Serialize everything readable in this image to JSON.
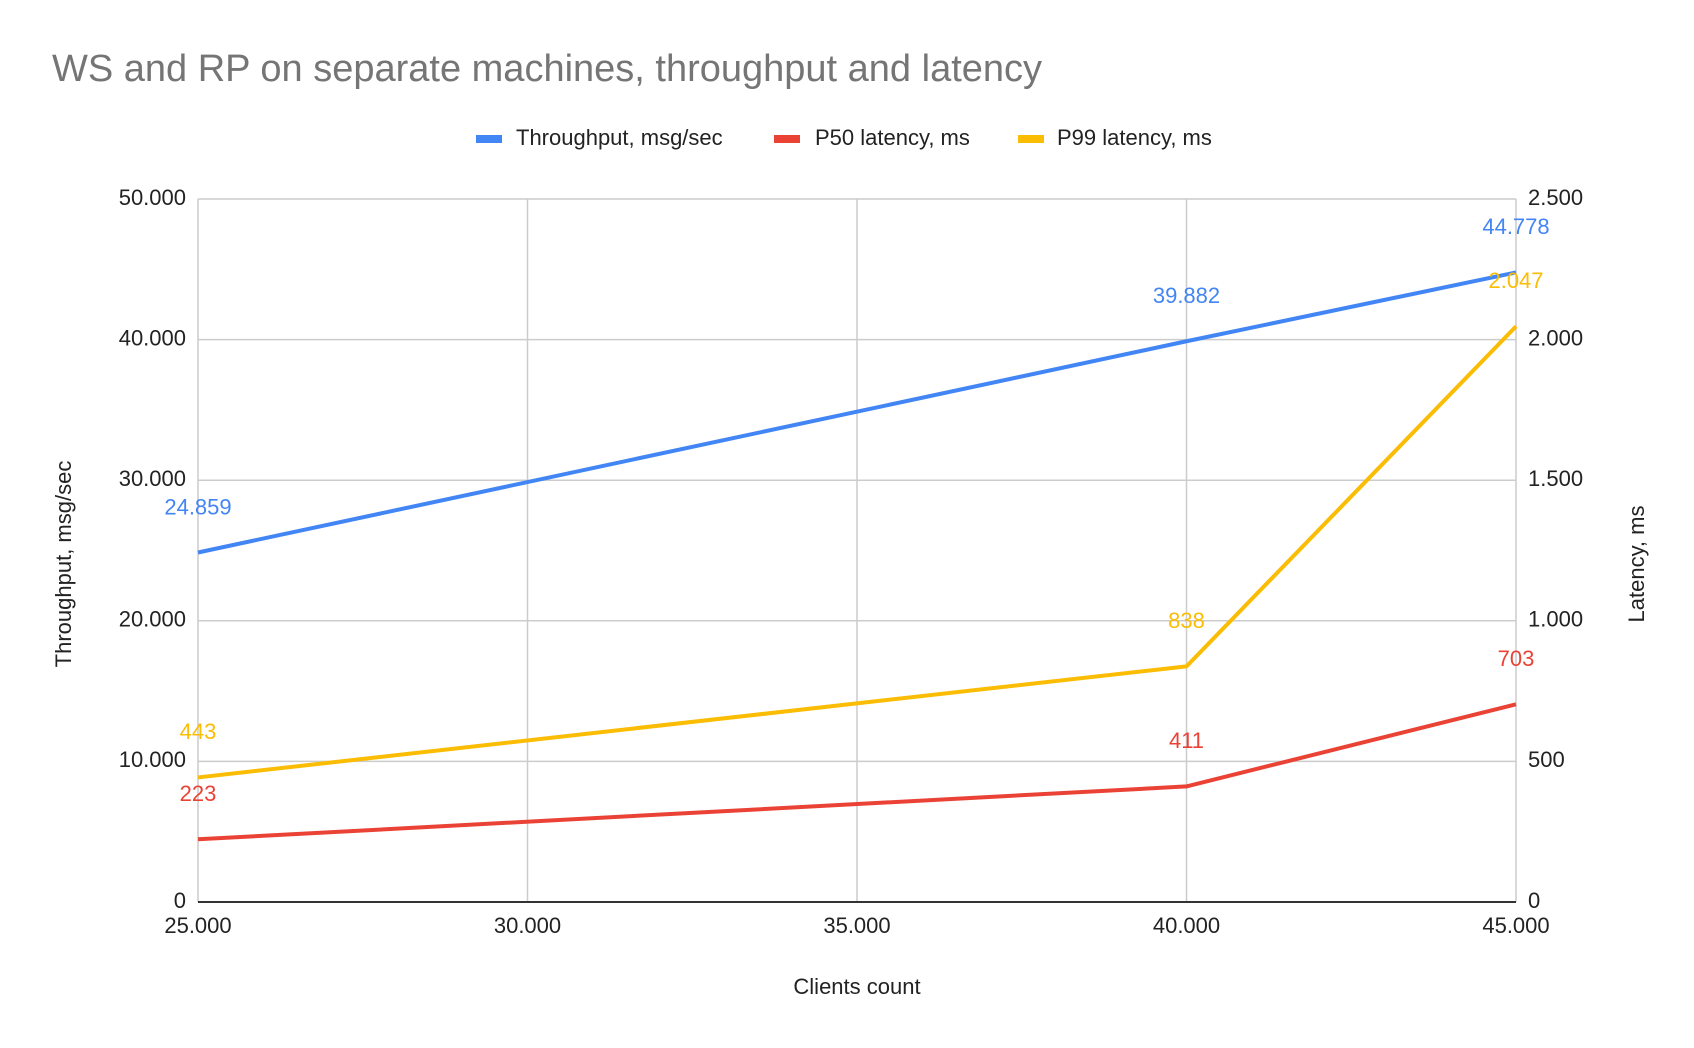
{
  "chart_data": {
    "type": "line",
    "title": "WS and RP on separate machines, throughput and latency",
    "xlabel": "Clients count",
    "ylabel": "Throughput, msg/sec",
    "y2label": "Latency, ms",
    "x": [
      25000,
      40000,
      45000
    ],
    "xlim": [
      25000,
      45000
    ],
    "xticks": [
      {
        "value": 25000,
        "label": "25.000"
      },
      {
        "value": 30000,
        "label": "30.000"
      },
      {
        "value": 35000,
        "label": "35.000"
      },
      {
        "value": 40000,
        "label": "40.000"
      },
      {
        "value": 45000,
        "label": "45.000"
      }
    ],
    "ylim": [
      0,
      50000
    ],
    "yticks": [
      0,
      {
        "value": 10000,
        "label": "10.000"
      },
      {
        "value": 20000,
        "label": "20.000"
      },
      {
        "value": 30000,
        "label": "30.000"
      },
      {
        "value": 40000,
        "label": "40.000"
      },
      {
        "value": 50000,
        "label": "50.000"
      }
    ],
    "y2lim": [
      0,
      2500
    ],
    "y2ticks": [
      0,
      500,
      {
        "value": 1000,
        "label": "1.000"
      },
      {
        "value": 1500,
        "label": "1.500"
      },
      {
        "value": 2000,
        "label": "2.000"
      },
      {
        "value": 2500,
        "label": "2.500"
      }
    ],
    "grid": true,
    "legend": "top",
    "series": [
      {
        "name": "Throughput, msg/sec",
        "color": "#4285f4",
        "values": [
          24859,
          39882,
          44778
        ],
        "value_labels": [
          "24.859",
          "39.882",
          "44.778"
        ]
      },
      {
        "name": "P50 latency, ms",
        "color": "#ea4335",
        "axis": "y2",
        "values": [
          223,
          411,
          703
        ]
      },
      {
        "name": "P99 latency, ms",
        "color": "#fbbc04",
        "axis": "y2",
        "values": [
          443,
          838,
          2047
        ],
        "value_labels": [
          "443",
          "838",
          "2.047"
        ]
      }
    ]
  }
}
